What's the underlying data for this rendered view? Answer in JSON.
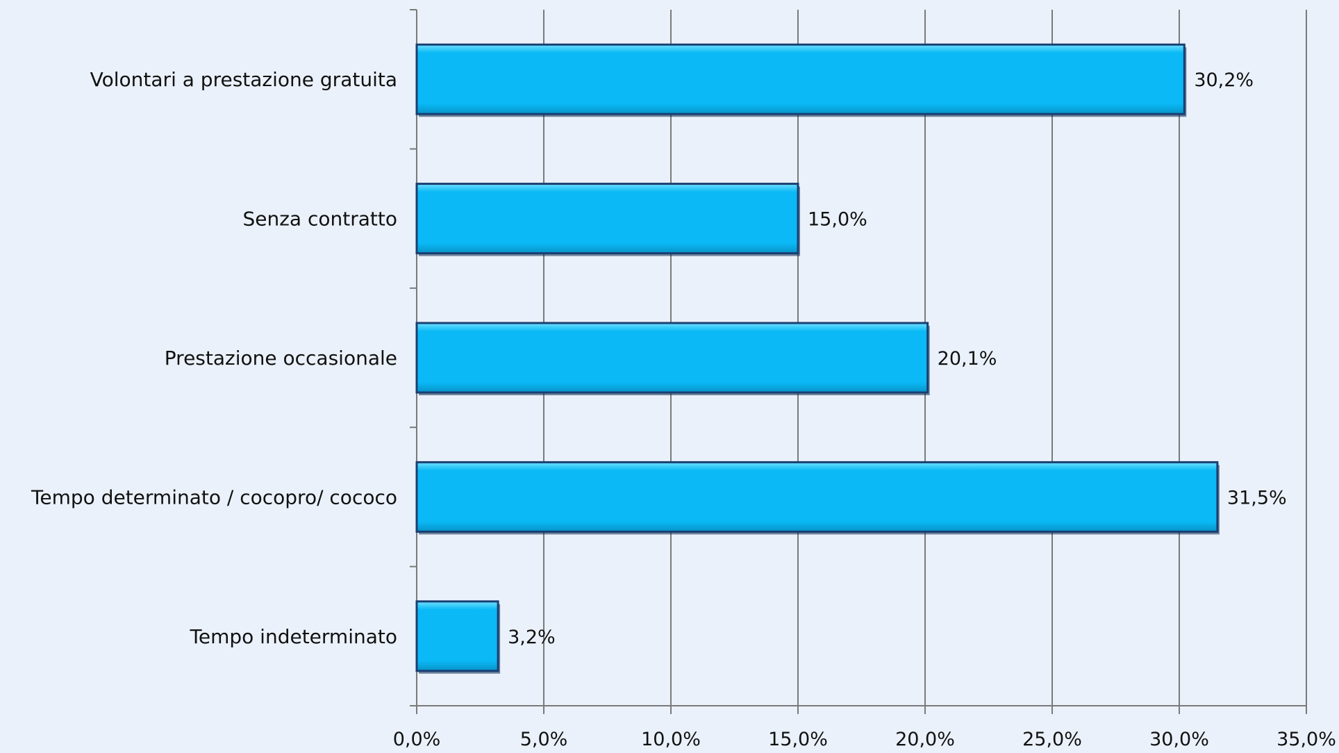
{
  "chart_data": {
    "type": "bar",
    "orientation": "horizontal",
    "categories": [
      "Volontari a prestazione gratuita",
      "Senza contratto",
      "Prestazione occasionale",
      "Tempo determinato / cocopro/  cococo",
      "Tempo indeterminato"
    ],
    "values": [
      30.2,
      15.0,
      20.1,
      31.5,
      3.2
    ],
    "value_labels": [
      "30,2%",
      "15,0%",
      "20,1%",
      "31,5%",
      "3,2%"
    ],
    "xlim": [
      0,
      35
    ],
    "x_ticks": [
      0,
      5,
      10,
      15,
      20,
      25,
      30,
      35
    ],
    "x_tick_labels": [
      "0,0%",
      "5,0%",
      "10,0%",
      "15,0%",
      "20,0%",
      "25,0%",
      "30,0%",
      "35,0%"
    ],
    "grid": "vertical",
    "legend": "none",
    "colors": {
      "bar_fill": "#0ab9f5",
      "bar_border": "#1a3f72",
      "grid": "#7a7a7a",
      "background": "#eaf1fa"
    }
  }
}
